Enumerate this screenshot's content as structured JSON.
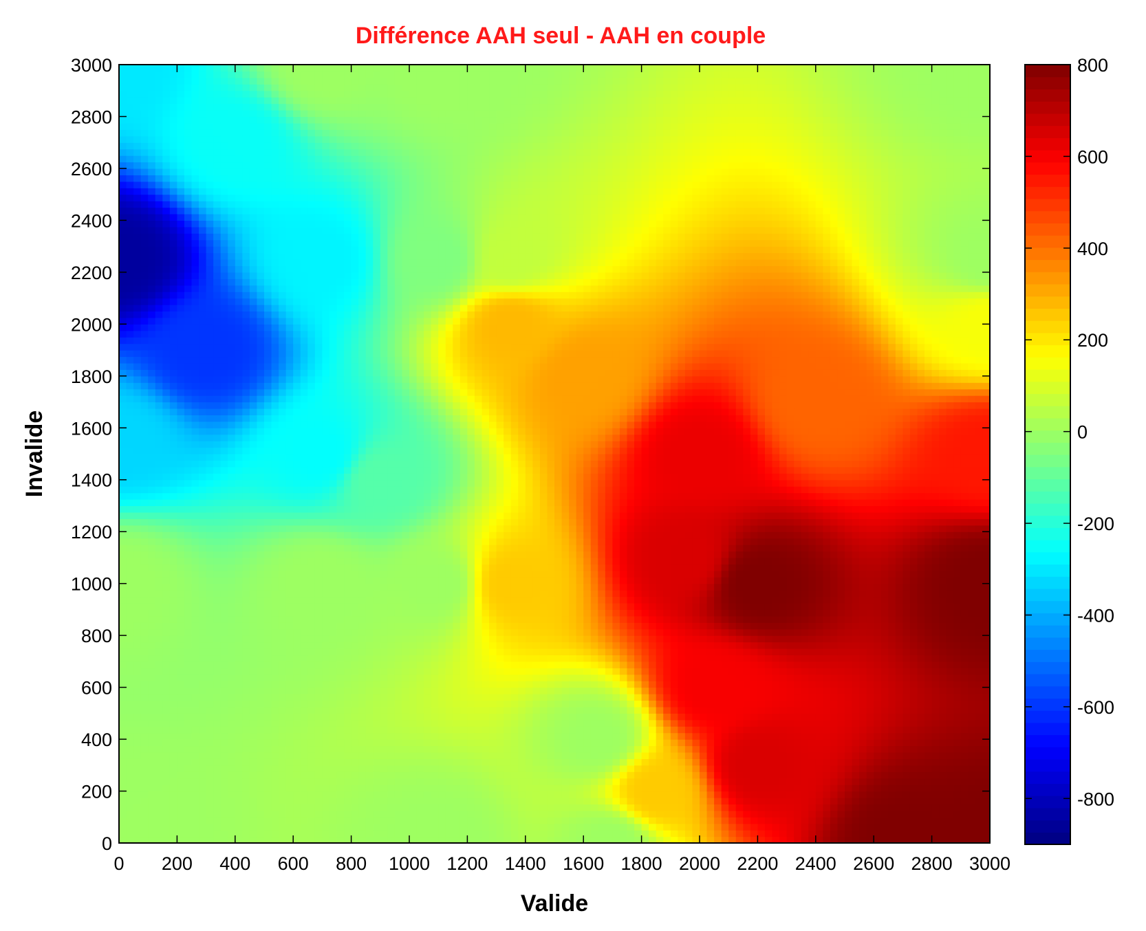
{
  "chart_data": {
    "type": "heatmap",
    "title": "Différence AAH seul - AAH en couple",
    "title_color": "#ff1a1a",
    "xlabel": "Valide",
    "ylabel": "Invalide",
    "xlim": [
      0,
      3000
    ],
    "ylim": [
      0,
      3000
    ],
    "x_ticks": [
      "0",
      "200",
      "400",
      "600",
      "800",
      "1000",
      "1200",
      "1400",
      "1600",
      "1800",
      "2000",
      "2200",
      "2400",
      "2600",
      "2800",
      "3000"
    ],
    "y_ticks": [
      "0",
      "200",
      "400",
      "600",
      "800",
      "1000",
      "1200",
      "1400",
      "1600",
      "1800",
      "2000",
      "2200",
      "2400",
      "2600",
      "2800",
      "3000"
    ],
    "colorbar": {
      "colormap": "jet",
      "range": [
        -900,
        800
      ],
      "ticks": [
        "800",
        "600",
        "400",
        "200",
        "0",
        "-200",
        "-400",
        "-600",
        "-800"
      ]
    },
    "grid": false,
    "grid_step": 25,
    "pivots": [
      {
        "x": 0,
        "y": 3000,
        "value": -300
      },
      {
        "x": 0,
        "y": 2250,
        "value": -850
      },
      {
        "x": 0,
        "y": 1550,
        "value": -330
      },
      {
        "x": 0,
        "y": 1000,
        "value": 0
      },
      {
        "x": 0,
        "y": 0,
        "value": 0
      },
      {
        "x": 700,
        "y": 3000,
        "value": 0
      },
      {
        "x": 700,
        "y": 2250,
        "value": -280
      },
      {
        "x": 700,
        "y": 1500,
        "value": -260
      },
      {
        "x": 700,
        "y": 1000,
        "value": 0
      },
      {
        "x": 1100,
        "y": 3000,
        "value": 0
      },
      {
        "x": 1100,
        "y": 2250,
        "value": -50
      },
      {
        "x": 1100,
        "y": 1000,
        "value": 0
      },
      {
        "x": 1100,
        "y": 0,
        "value": 0
      },
      {
        "x": 1350,
        "y": 2250,
        "value": 60
      },
      {
        "x": 1350,
        "y": 2000,
        "value": 280
      },
      {
        "x": 1350,
        "y": 1000,
        "value": 250
      },
      {
        "x": 1650,
        "y": 400,
        "value": 0
      },
      {
        "x": 1700,
        "y": 0,
        "value": 0
      },
      {
        "x": 2000,
        "y": 1500,
        "value": 620
      },
      {
        "x": 2200,
        "y": 1000,
        "value": 800
      },
      {
        "x": 2050,
        "y": 600,
        "value": 600
      },
      {
        "x": 2700,
        "y": 0,
        "value": 800
      },
      {
        "x": 3000,
        "y": 3000,
        "value": 0
      },
      {
        "x": 3000,
        "y": 2250,
        "value": 0
      },
      {
        "x": 3000,
        "y": 2000,
        "value": 150
      },
      {
        "x": 3000,
        "y": 1500,
        "value": 550
      },
      {
        "x": 3000,
        "y": 1000,
        "value": 800
      },
      {
        "x": 3000,
        "y": 0,
        "value": 800
      },
      {
        "x": 1600,
        "y": 1800,
        "value": 320
      },
      {
        "x": 2400,
        "y": 1700,
        "value": 420
      },
      {
        "x": 1950,
        "y": 1100,
        "value": 650
      },
      {
        "x": 2200,
        "y": 300,
        "value": 650
      },
      {
        "x": 1850,
        "y": 200,
        "value": 250
      },
      {
        "x": 400,
        "y": 2700,
        "value": -250
      },
      {
        "x": 300,
        "y": 1900,
        "value": -600
      },
      {
        "x": 900,
        "y": 1400,
        "value": -120
      }
    ]
  }
}
